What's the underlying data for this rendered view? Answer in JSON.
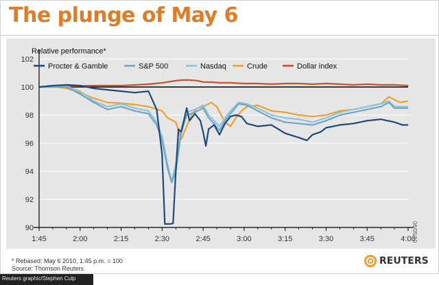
{
  "title": "The plunge of May 6",
  "side_date": "06/05/10",
  "footnote": {
    "rebased": "* Rebased: May 6 2010, 1:45 p.m. = 100",
    "source": "Source: Thomson Reuters"
  },
  "credit": "Reuters graphic/Stephen Culp",
  "logo": {
    "text": "REUTERS",
    "icon": "reuters-dot-logo-icon"
  },
  "chart_data": {
    "type": "line",
    "title": "The plunge of May 6",
    "ylabel": "Relative performance*",
    "xlabel": "",
    "ylim": [
      90,
      102
    ],
    "yticks": [
      90,
      92,
      94,
      96,
      98,
      100,
      102
    ],
    "reference_line": 100,
    "xlim": [
      0,
      135
    ],
    "xtick_values": [
      0,
      15,
      30,
      45,
      60,
      75,
      90,
      105,
      120,
      135
    ],
    "xtick_labels": [
      "1:45",
      "2:00",
      "2:15",
      "2:30",
      "2:45",
      "3:00",
      "3:15",
      "3:30",
      "3:45",
      "4:00"
    ],
    "legend_position": "top-left",
    "series": [
      {
        "name": "Dollar index",
        "color": "#c8502a",
        "points": [
          [
            0,
            100
          ],
          [
            10,
            100.05
          ],
          [
            20,
            100.1
          ],
          [
            30,
            100.1
          ],
          [
            40,
            100.2
          ],
          [
            45,
            100.3
          ],
          [
            50,
            100.45
          ],
          [
            52,
            100.5
          ],
          [
            55,
            100.5
          ],
          [
            58,
            100.45
          ],
          [
            60,
            100.35
          ],
          [
            63,
            100.35
          ],
          [
            66,
            100.3
          ],
          [
            70,
            100.3
          ],
          [
            75,
            100.25
          ],
          [
            80,
            100.25
          ],
          [
            85,
            100.2
          ],
          [
            90,
            100.25
          ],
          [
            95,
            100.25
          ],
          [
            100,
            100.2
          ],
          [
            105,
            100.25
          ],
          [
            110,
            100.2
          ],
          [
            115,
            100.15
          ],
          [
            120,
            100.2
          ],
          [
            125,
            100.15
          ],
          [
            130,
            100.15
          ],
          [
            135,
            100.1
          ]
        ]
      },
      {
        "name": "Crude",
        "color": "#f0a030",
        "points": [
          [
            0,
            100
          ],
          [
            5,
            100.05
          ],
          [
            10,
            99.9
          ],
          [
            15,
            99.6
          ],
          [
            20,
            99.2
          ],
          [
            25,
            98.9
          ],
          [
            30,
            98.85
          ],
          [
            35,
            98.75
          ],
          [
            40,
            98.6
          ],
          [
            45,
            98.3
          ],
          [
            47,
            97.8
          ],
          [
            50,
            97.5
          ],
          [
            52,
            96.3
          ],
          [
            54,
            97.2
          ],
          [
            56,
            98.1
          ],
          [
            58,
            98.5
          ],
          [
            60,
            98.6
          ],
          [
            63,
            98.9
          ],
          [
            65,
            98.6
          ],
          [
            68,
            97.5
          ],
          [
            70,
            97.2
          ],
          [
            72,
            97.8
          ],
          [
            74,
            98.3
          ],
          [
            76,
            98.6
          ],
          [
            80,
            98.7
          ],
          [
            85,
            98.3
          ],
          [
            90,
            98.2
          ],
          [
            95,
            98.0
          ],
          [
            100,
            97.9
          ],
          [
            105,
            98.0
          ],
          [
            110,
            98.3
          ],
          [
            115,
            98.4
          ],
          [
            120,
            98.6
          ],
          [
            125,
            98.8
          ],
          [
            128,
            99.3
          ],
          [
            130,
            99.1
          ],
          [
            132,
            98.9
          ],
          [
            135,
            99.0
          ]
        ]
      },
      {
        "name": "Nasdaq",
        "color": "#8cc4dc",
        "points": [
          [
            0,
            100
          ],
          [
            5,
            100
          ],
          [
            10,
            100.05
          ],
          [
            15,
            99.7
          ],
          [
            20,
            99.0
          ],
          [
            25,
            98.6
          ],
          [
            30,
            98.8
          ],
          [
            35,
            98.5
          ],
          [
            40,
            98.3
          ],
          [
            43,
            97.5
          ],
          [
            45,
            96.5
          ],
          [
            47,
            94.5
          ],
          [
            48.5,
            93.3
          ],
          [
            50,
            94.5
          ],
          [
            52,
            97.0
          ],
          [
            54,
            98.2
          ],
          [
            57,
            98.4
          ],
          [
            60,
            98.7
          ],
          [
            62,
            98.0
          ],
          [
            64,
            97.6
          ],
          [
            66,
            97.2
          ],
          [
            68,
            97.8
          ],
          [
            70,
            98.3
          ],
          [
            73,
            98.9
          ],
          [
            76,
            98.8
          ],
          [
            80,
            98.5
          ],
          [
            85,
            98.0
          ],
          [
            90,
            97.8
          ],
          [
            95,
            97.7
          ],
          [
            100,
            97.5
          ],
          [
            105,
            97.8
          ],
          [
            110,
            98.2
          ],
          [
            115,
            98.4
          ],
          [
            120,
            98.6
          ],
          [
            125,
            98.8
          ],
          [
            128,
            99.0
          ],
          [
            130,
            98.6
          ],
          [
            135,
            98.6
          ]
        ]
      },
      {
        "name": "S&P 500",
        "color": "#6fa6c8",
        "points": [
          [
            0,
            100
          ],
          [
            5,
            100
          ],
          [
            10,
            100
          ],
          [
            15,
            99.5
          ],
          [
            20,
            98.9
          ],
          [
            25,
            98.4
          ],
          [
            30,
            98.6
          ],
          [
            35,
            98.3
          ],
          [
            40,
            98.1
          ],
          [
            43,
            97.3
          ],
          [
            45,
            96.2
          ],
          [
            47,
            94.2
          ],
          [
            48.5,
            93.2
          ],
          [
            50,
            94.0
          ],
          [
            52,
            96.8
          ],
          [
            54,
            98.0
          ],
          [
            57,
            98.2
          ],
          [
            60,
            98.5
          ],
          [
            62,
            97.8
          ],
          [
            64,
            97.4
          ],
          [
            66,
            96.9
          ],
          [
            68,
            97.6
          ],
          [
            70,
            98.1
          ],
          [
            73,
            98.8
          ],
          [
            76,
            98.7
          ],
          [
            80,
            98.3
          ],
          [
            85,
            97.8
          ],
          [
            90,
            97.5
          ],
          [
            95,
            97.4
          ],
          [
            100,
            97.3
          ],
          [
            105,
            97.6
          ],
          [
            110,
            98.0
          ],
          [
            115,
            98.2
          ],
          [
            120,
            98.4
          ],
          [
            125,
            98.6
          ],
          [
            128,
            98.9
          ],
          [
            130,
            98.5
          ],
          [
            135,
            98.5
          ]
        ]
      },
      {
        "name": "Procter & Gamble",
        "color": "#1a4a7a",
        "points": [
          [
            0,
            100
          ],
          [
            5,
            100.1
          ],
          [
            10,
            100.15
          ],
          [
            15,
            100.1
          ],
          [
            20,
            99.9
          ],
          [
            25,
            99.8
          ],
          [
            30,
            99.7
          ],
          [
            35,
            99.6
          ],
          [
            40,
            99.7
          ],
          [
            43,
            98.4
          ],
          [
            45,
            95.2
          ],
          [
            46,
            90.25
          ],
          [
            48,
            90.25
          ],
          [
            49,
            90.3
          ],
          [
            50,
            94.0
          ],
          [
            51,
            97.0
          ],
          [
            52,
            96.8
          ],
          [
            54,
            98.5
          ],
          [
            55,
            97.6
          ],
          [
            57,
            98.1
          ],
          [
            59,
            97.6
          ],
          [
            60,
            96.8
          ],
          [
            61,
            95.8
          ],
          [
            62,
            97.0
          ],
          [
            64,
            97.3
          ],
          [
            66,
            96.6
          ],
          [
            68,
            97.4
          ],
          [
            70,
            97.9
          ],
          [
            72,
            98.0
          ],
          [
            74,
            97.9
          ],
          [
            76,
            97.4
          ],
          [
            80,
            97.2
          ],
          [
            85,
            97.3
          ],
          [
            90,
            96.7
          ],
          [
            95,
            96.4
          ],
          [
            98,
            96.2
          ],
          [
            100,
            96.6
          ],
          [
            103,
            96.8
          ],
          [
            105,
            97.1
          ],
          [
            110,
            97.3
          ],
          [
            115,
            97.4
          ],
          [
            120,
            97.6
          ],
          [
            125,
            97.7
          ],
          [
            130,
            97.5
          ],
          [
            133,
            97.3
          ],
          [
            135,
            97.3
          ]
        ]
      }
    ],
    "legend_order": [
      "Procter & Gamble",
      "S&P 500",
      "Nasdaq",
      "Crude",
      "Dollar index"
    ]
  }
}
